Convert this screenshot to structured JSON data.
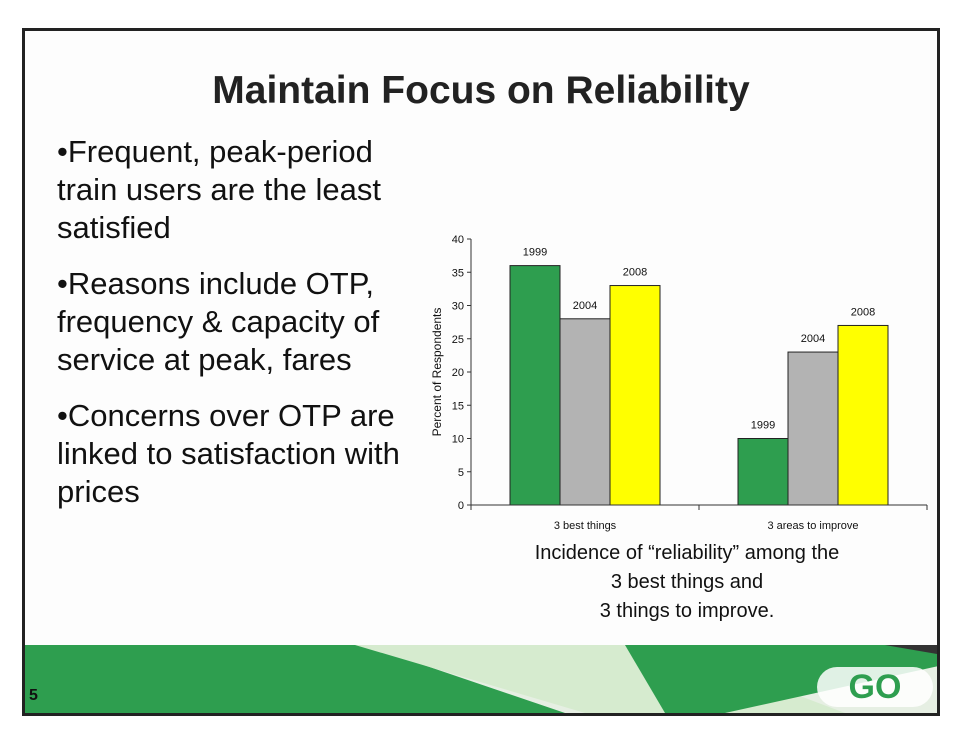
{
  "slide": {
    "title": "Maintain Focus on Reliability",
    "bullets": [
      "•Frequent, peak-period train users are the least satisfied",
      "•Reasons include OTP, frequency & capacity of service at peak, fares",
      "•Concerns over OTP are linked to satisfaction with prices"
    ],
    "caption_lines": [
      "Incidence of “reliability” among the",
      "3 best things and",
      "3 things to improve."
    ],
    "slide_number": "5",
    "logo": "GO"
  },
  "chart_data": {
    "type": "bar",
    "categories": [
      "3 best things",
      "3 areas to improve"
    ],
    "series": [
      {
        "name": "1999",
        "values": [
          36,
          10
        ],
        "color": "#2e9e4f"
      },
      {
        "name": "2004",
        "values": [
          28,
          23
        ],
        "color": "#b3b3b3"
      },
      {
        "name": "2008",
        "values": [
          33,
          27
        ],
        "color": "#ffff00"
      }
    ],
    "ylabel": "Percent of Respondents",
    "ylim": [
      0,
      40
    ],
    "yticks": [
      0,
      5,
      10,
      15,
      20,
      25,
      30,
      35,
      40
    ],
    "grid": false,
    "bar_labels": "series name above each bar"
  },
  "colors": {
    "green_band": "#2e9e4f",
    "light_green": "#cfe8c9",
    "text": "#111111"
  }
}
